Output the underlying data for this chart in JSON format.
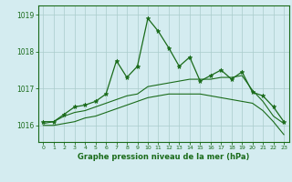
{
  "title": "Graphe pression niveau de la mer (hPa)",
  "bg_color": "#d4ecf0",
  "grid_color": "#aacccc",
  "line_color": "#1a6b1a",
  "xlim": [
    -0.5,
    23.5
  ],
  "ylim": [
    1015.55,
    1019.25
  ],
  "yticks": [
    1016,
    1017,
    1018,
    1019
  ],
  "xticks": [
    0,
    1,
    2,
    3,
    4,
    5,
    6,
    7,
    8,
    9,
    10,
    11,
    12,
    13,
    14,
    15,
    16,
    17,
    18,
    19,
    20,
    21,
    22,
    23
  ],
  "line1": [
    1016.1,
    1016.1,
    1016.3,
    1016.5,
    1016.55,
    1016.65,
    1016.85,
    1017.75,
    1017.3,
    1017.6,
    1018.9,
    1018.55,
    1018.1,
    1017.6,
    1017.85,
    1017.2,
    1017.35,
    1017.5,
    1017.25,
    1017.45,
    1016.9,
    1016.8,
    1016.5,
    1016.1
  ],
  "line2": [
    1016.05,
    1016.1,
    1016.25,
    1016.35,
    1016.4,
    1016.5,
    1016.6,
    1016.7,
    1016.8,
    1016.85,
    1017.05,
    1017.1,
    1017.15,
    1017.2,
    1017.25,
    1017.25,
    1017.25,
    1017.3,
    1017.3,
    1017.35,
    1016.95,
    1016.65,
    1016.25,
    1016.05
  ],
  "line3": [
    1016.0,
    1016.0,
    1016.05,
    1016.1,
    1016.2,
    1016.25,
    1016.35,
    1016.45,
    1016.55,
    1016.65,
    1016.75,
    1016.8,
    1016.85,
    1016.85,
    1016.85,
    1016.85,
    1016.8,
    1016.75,
    1016.7,
    1016.65,
    1016.6,
    1016.4,
    1016.1,
    1015.75
  ]
}
